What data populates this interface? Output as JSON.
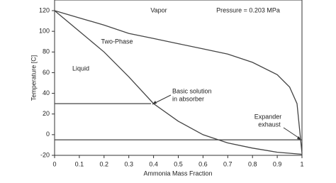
{
  "chart_data": {
    "type": "line",
    "xlabel": "Ammonia Mass Fraction",
    "ylabel": "Temperature [C]",
    "xlim": [
      0,
      1
    ],
    "ylim": [
      -20,
      120
    ],
    "xticks": [
      0,
      0.1,
      0.2,
      0.3,
      0.4,
      0.5,
      0.6,
      0.7,
      0.8,
      0.9,
      1
    ],
    "yticks": [
      -20,
      0,
      20,
      40,
      60,
      80,
      100,
      120
    ],
    "series": [
      {
        "color": "#444444",
        "x": [
          0,
          0.1,
          0.2,
          0.3,
          0.4,
          0.5,
          0.6,
          0.7,
          0.8,
          0.9,
          0.95,
          0.98,
          1
        ],
        "values": [
          120,
          113,
          106,
          98,
          93,
          88,
          83,
          78,
          70,
          58,
          46,
          30,
          -18
        ]
      },
      {
        "color": "#444444",
        "x": [
          0,
          0.1,
          0.2,
          0.3,
          0.4,
          0.5,
          0.6,
          0.7,
          0.8,
          0.9,
          1
        ],
        "values": [
          120,
          100,
          80,
          56,
          30,
          13,
          0,
          -8,
          -13,
          -17,
          -19
        ]
      },
      {
        "color": "#444444",
        "x": [
          0,
          0.39
        ],
        "values": [
          30,
          30
        ]
      },
      {
        "color": "#444444",
        "x": [
          0,
          1
        ],
        "values": [
          -5,
          -5
        ]
      }
    ],
    "annotations": [
      "Vapor",
      "Pressure = 0.203 MPa",
      "Two-Phase",
      "Liquid",
      "Basic solution",
      "in absorber",
      "Expander",
      "exhaust"
    ]
  }
}
